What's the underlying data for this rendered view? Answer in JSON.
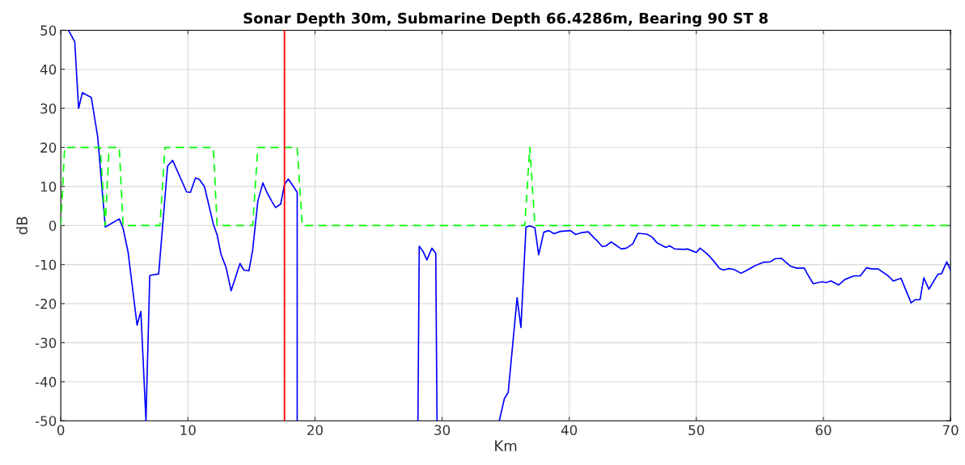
{
  "chart_data": {
    "type": "line",
    "title": "Sonar Depth 30m, Submarine Depth 66.4286m, Bearing 90 ST 8",
    "xlabel": "Km",
    "ylabel": "dB",
    "xlim": [
      0,
      70
    ],
    "ylim": [
      -50,
      50
    ],
    "xticks": [
      0,
      10,
      20,
      30,
      40,
      50,
      60,
      70
    ],
    "yticks": [
      -50,
      -40,
      -30,
      -20,
      -10,
      0,
      10,
      20,
      30,
      40,
      50
    ],
    "grid": true,
    "marker": "none",
    "series": [
      {
        "color": "#0000ff",
        "line_style": "solid",
        "x": [
          0.6,
          1.1,
          1.4,
          1.7,
          2.4,
          2.9,
          3.5,
          4.6,
          4.9,
          5.3,
          6.0,
          6.3,
          6.7,
          7.0,
          7.7,
          8.4,
          8.8,
          9.9,
          10.2,
          10.6,
          10.9,
          11.3,
          12.0,
          12.3,
          12.6,
          13.0,
          13.4,
          14.1,
          14.4,
          14.8,
          15.1,
          15.5,
          15.9,
          16.2,
          16.6,
          16.9,
          17.3,
          17.6,
          17.9,
          18.3,
          18.6,
          18.6,
          23.0,
          28.1,
          28.2,
          28.5,
          28.8,
          29.2,
          29.5,
          29.6,
          32.0,
          34.5,
          34.9,
          35.2,
          35.9,
          36.2,
          36.6,
          36.9,
          37.3,
          37.6,
          38.0,
          38.4,
          38.8,
          39.3,
          40.1,
          40.5,
          41.0,
          41.5,
          42.0,
          42.2,
          42.6,
          42.9,
          43.3,
          43.7,
          44.1,
          44.5,
          45.0,
          45.4,
          46.1,
          46.5,
          46.9,
          47.6,
          47.9,
          48.3,
          49.0,
          49.3,
          50.0,
          50.3,
          50.9,
          51.4,
          51.8,
          52.1,
          52.6,
          53.0,
          53.5,
          53.9,
          54.6,
          55.3,
          55.8,
          56.2,
          56.7,
          57.4,
          57.9,
          58.5,
          58.7,
          59.2,
          59.9,
          60.2,
          60.6,
          61.2,
          61.7,
          62.4,
          62.9,
          63.4,
          63.8,
          64.3,
          65.1,
          65.5,
          66.1,
          66.9,
          67.2,
          67.6,
          67.9,
          68.3,
          69.0,
          69.3,
          69.7,
          70.0
        ],
        "values": [
          50,
          47,
          30,
          34,
          32.8,
          22.8,
          -0.4,
          1.7,
          -0.7,
          -6.9,
          -25.5,
          -22,
          -50,
          -12.8,
          -12.4,
          15.2,
          16.7,
          8.6,
          8.5,
          12.2,
          11.8,
          10,
          0.4,
          -2.4,
          -7.3,
          -10.7,
          -16.7,
          -9.7,
          -11.4,
          -11.6,
          -6.2,
          6.2,
          10.9,
          8.6,
          6.2,
          4.6,
          5.5,
          10.5,
          11.9,
          10,
          8.5,
          -50,
          null,
          -50,
          -5.3,
          -6.6,
          -8.8,
          -5.8,
          -7.1,
          -50,
          null,
          -50,
          -44.3,
          -42.7,
          -18.5,
          -26.1,
          -0.4,
          -0.1,
          -0.6,
          -7.5,
          -1.7,
          -1.3,
          -2.1,
          -1.5,
          -1.3,
          -2.3,
          -1.8,
          -1.6,
          -3.3,
          -3.9,
          -5.4,
          -5.2,
          -4.2,
          -5.1,
          -6,
          -5.8,
          -4.7,
          -2,
          -2.2,
          -2.9,
          -4.4,
          -5.6,
          -5.2,
          -6,
          -6.1,
          -6,
          -6.9,
          -5.8,
          -7.4,
          -9.2,
          -10.9,
          -11.4,
          -11,
          -11.3,
          -12.2,
          -11.6,
          -10.3,
          -9.4,
          -9.3,
          -8.5,
          -8.4,
          -10.4,
          -10.9,
          -10.9,
          -12.2,
          -14.9,
          -14.4,
          -14.6,
          -14.2,
          -15.2,
          -13.8,
          -12.9,
          -12.9,
          -10.8,
          -11.1,
          -11.1,
          -12.9,
          -14.2,
          -13.5,
          -19.8,
          -19,
          -19,
          -13.4,
          -16.3,
          -12.5,
          -12.3,
          -9.3,
          -11.4
        ]
      },
      {
        "color": "#00ff00",
        "line_style": "dashed",
        "x": [
          0,
          0.3,
          3.1,
          3.5,
          3.8,
          4.6,
          4.9,
          7.8,
          8.2,
          12.0,
          12.3,
          15.1,
          15.5,
          18.6,
          19.0,
          36.5,
          36.9,
          37.3,
          70
        ],
        "values": [
          0,
          20,
          20,
          0,
          20,
          20,
          0,
          0,
          20,
          20,
          0,
          0,
          20,
          20,
          0,
          0,
          20,
          0,
          0
        ]
      }
    ],
    "ref_lines": [
      {
        "axis": "x",
        "value": 17.6,
        "color": "#ff0000",
        "line_style": "solid"
      }
    ]
  }
}
